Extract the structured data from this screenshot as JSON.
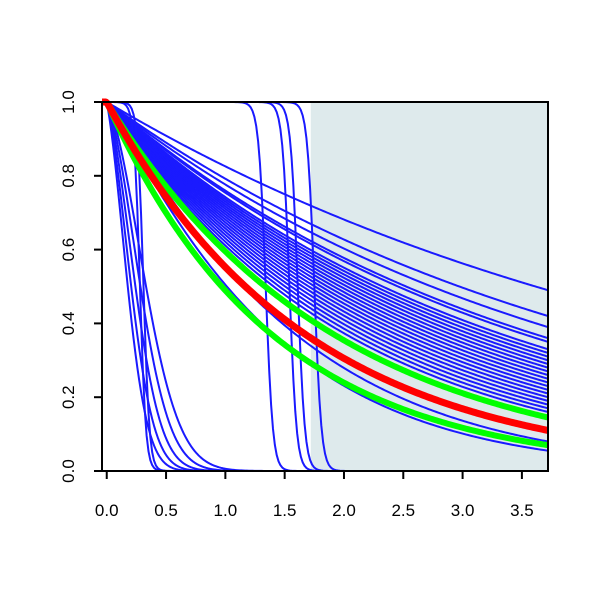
{
  "chart_data": {
    "type": "line",
    "title": "",
    "xlabel": "",
    "ylabel": "",
    "xlim": [
      -0.04,
      3.72
    ],
    "ylim": [
      0,
      1
    ],
    "x_ticks": [
      "0.0",
      "0.5",
      "1.0",
      "1.5",
      "2.0",
      "2.5",
      "3.0",
      "3.5"
    ],
    "y_ticks": [
      "0.0",
      "0.2",
      "0.4",
      "0.6",
      "0.8",
      "1.0"
    ],
    "grid": false,
    "legend": "none",
    "shaded_region": {
      "x": [
        1.72,
        3.72
      ],
      "color": "#deeaec"
    },
    "colors": {
      "blue": "#1a1aff",
      "red": "#ff0000",
      "green": "#00ff00"
    },
    "curve_families": {
      "exponential_blue_end_values": [
        0.49,
        0.42,
        0.39,
        0.36,
        0.35,
        0.33,
        0.32,
        0.31,
        0.3,
        0.29,
        0.28,
        0.27,
        0.26,
        0.25,
        0.24,
        0.23,
        0.22,
        0.21,
        0.2,
        0.19,
        0.18,
        0.17,
        0.16
      ],
      "exponential_blue_curved_end_values": [
        0.08,
        0.055
      ],
      "exponential_thick_red_end_value": 0.11,
      "exponential_thick_green_end_values": [
        0.07,
        0.145
      ],
      "fast_decay_blue_rates": [
        5.0,
        6.5,
        8.5,
        11.0,
        14.0
      ],
      "step_drop_blue_positions": [
        0.28,
        0.31,
        1.34,
        1.54,
        1.61,
        1.75
      ]
    }
  }
}
